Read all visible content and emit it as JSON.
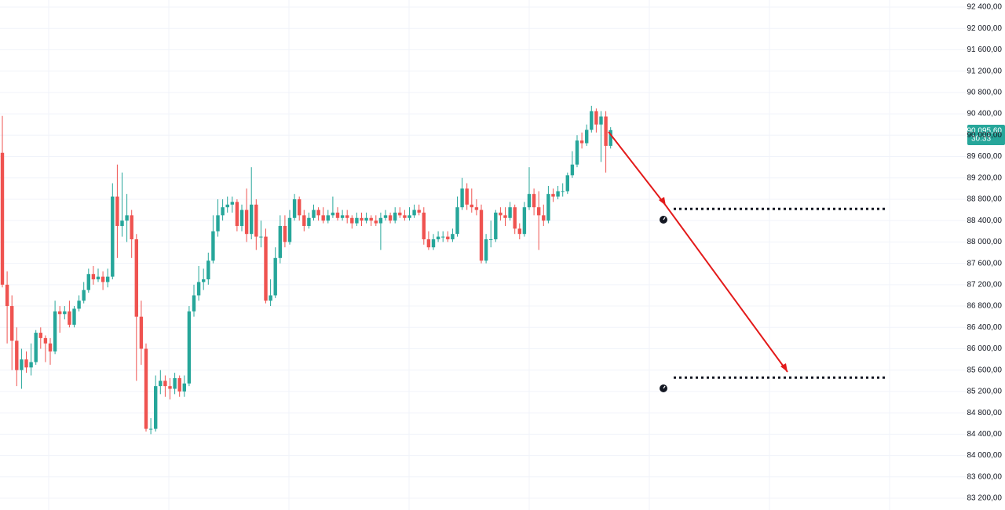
{
  "chart_data": {
    "type": "candlestick",
    "up_color": "#26a69a",
    "down_color": "#ef5350",
    "grid": true,
    "ylim": [
      82980,
      92532
    ],
    "yticks": [
      {
        "value": 92400,
        "label": "92 400,00"
      },
      {
        "value": 92000,
        "label": "92 000,00"
      },
      {
        "value": 91600,
        "label": "91 600,00"
      },
      {
        "value": 91200,
        "label": "91 200,00"
      },
      {
        "value": 90800,
        "label": "90 800,00"
      },
      {
        "value": 90400,
        "label": "90 400,00"
      },
      {
        "value": 90000,
        "label": "90 000,00"
      },
      {
        "value": 89600,
        "label": "89 600,00"
      },
      {
        "value": 89200,
        "label": "89 200,00"
      },
      {
        "value": 88800,
        "label": "88 800,00"
      },
      {
        "value": 88400,
        "label": "88 400,00"
      },
      {
        "value": 88000,
        "label": "88 000,00"
      },
      {
        "value": 87600,
        "label": "87 600,00"
      },
      {
        "value": 87200,
        "label": "87 200,00"
      },
      {
        "value": 86800,
        "label": "86 800,00"
      },
      {
        "value": 86400,
        "label": "86 400,00"
      },
      {
        "value": 86000,
        "label": "86 000,00"
      },
      {
        "value": 85600,
        "label": "85 600,00"
      },
      {
        "value": 85200,
        "label": "85 200,00"
      },
      {
        "value": 84800,
        "label": "84 800,00"
      },
      {
        "value": 84400,
        "label": "84 400,00"
      },
      {
        "value": 84000,
        "label": "84 000,00"
      },
      {
        "value": 83600,
        "label": "83 600,00"
      },
      {
        "value": 83200,
        "label": "83 200,00"
      }
    ],
    "current_price": {
      "value": 90095.6,
      "label": "90 095,60"
    },
    "countdown": "30:33",
    "levels": [
      88620,
      85460
    ],
    "candles": [
      [
        89670,
        90360,
        87150,
        87200
      ],
      [
        87200,
        87450,
        86100,
        86800
      ],
      [
        86800,
        87000,
        85600,
        86150
      ],
      [
        86150,
        86400,
        85300,
        85600
      ],
      [
        85600,
        86000,
        85250,
        85800
      ],
      [
        85800,
        85950,
        85550,
        85650
      ],
      [
        85650,
        86100,
        85500,
        85750
      ],
      [
        85750,
        86350,
        85700,
        86300
      ],
      [
        86300,
        86400,
        86000,
        86200
      ],
      [
        86200,
        86250,
        85750,
        86100
      ],
      [
        86100,
        86200,
        85700,
        85950
      ],
      [
        85950,
        86900,
        85900,
        86700
      ],
      [
        86700,
        86800,
        86300,
        86650
      ],
      [
        86650,
        86800,
        86550,
        86700
      ],
      [
        86700,
        86900,
        86400,
        86450
      ],
      [
        86450,
        86800,
        86400,
        86750
      ],
      [
        86750,
        87000,
        86700,
        86900
      ],
      [
        86900,
        87250,
        86850,
        87100
      ],
      [
        87100,
        87500,
        87050,
        87400
      ],
      [
        87400,
        87550,
        87200,
        87300
      ],
      [
        87300,
        87500,
        87250,
        87350
      ],
      [
        87350,
        87450,
        87100,
        87250
      ],
      [
        87250,
        87500,
        87150,
        87350
      ],
      [
        87350,
        89100,
        87300,
        88850
      ],
      [
        88850,
        89450,
        87700,
        88300
      ],
      [
        88300,
        89300,
        88100,
        88400
      ],
      [
        88400,
        88900,
        88000,
        88500
      ],
      [
        88500,
        88600,
        87700,
        88050
      ],
      [
        88050,
        88150,
        85400,
        86600
      ],
      [
        86600,
        86900,
        85700,
        86000
      ],
      [
        86000,
        86100,
        84450,
        84500
      ],
      [
        84500,
        84700,
        84400,
        84500
      ],
      [
        84500,
        85500,
        84450,
        85300
      ],
      [
        85300,
        85600,
        85150,
        85400
      ],
      [
        85400,
        85500,
        85100,
        85300
      ],
      [
        85300,
        85450,
        85050,
        85250
      ],
      [
        85250,
        85550,
        85150,
        85450
      ],
      [
        85450,
        85500,
        85100,
        85200
      ],
      [
        85200,
        85500,
        85100,
        85350
      ],
      [
        85350,
        86800,
        85300,
        86700
      ],
      [
        86700,
        87200,
        86600,
        87000
      ],
      [
        87000,
        87550,
        86900,
        87250
      ],
      [
        87250,
        87500,
        87100,
        87300
      ],
      [
        87300,
        87800,
        87200,
        87650
      ],
      [
        87650,
        88500,
        87600,
        88200
      ],
      [
        88200,
        88800,
        88100,
        88500
      ],
      [
        88500,
        88800,
        88400,
        88650
      ],
      [
        88650,
        88850,
        88550,
        88700
      ],
      [
        88700,
        88850,
        88550,
        88750
      ],
      [
        88750,
        88800,
        88200,
        88300
      ],
      [
        88300,
        88700,
        88200,
        88600
      ],
      [
        88600,
        89000,
        88000,
        88150
      ],
      [
        88150,
        89400,
        88050,
        88700
      ],
      [
        88700,
        88800,
        87850,
        88100
      ],
      [
        88100,
        88400,
        87900,
        88100
      ],
      [
        88100,
        88250,
        86850,
        86900
      ],
      [
        86900,
        87300,
        86800,
        87000
      ],
      [
        87000,
        87900,
        86950,
        87700
      ],
      [
        87700,
        88500,
        87600,
        88300
      ],
      [
        88300,
        88500,
        87900,
        88000
      ],
      [
        88000,
        88600,
        87950,
        88450
      ],
      [
        88450,
        88900,
        88400,
        88800
      ],
      [
        88800,
        88850,
        88400,
        88500
      ],
      [
        88500,
        88600,
        88200,
        88300
      ],
      [
        88300,
        88550,
        88250,
        88450
      ],
      [
        88450,
        88700,
        88400,
        88600
      ],
      [
        88600,
        88650,
        88400,
        88500
      ],
      [
        88500,
        88650,
        88350,
        88400
      ],
      [
        88400,
        88600,
        88350,
        88500
      ],
      [
        88500,
        88850,
        88450,
        88550
      ],
      [
        88550,
        88650,
        88400,
        88450
      ],
      [
        88450,
        88600,
        88400,
        88500
      ],
      [
        88500,
        88600,
        88350,
        88450
      ],
      [
        88450,
        88500,
        88250,
        88350
      ],
      [
        88350,
        88550,
        88300,
        88450
      ],
      [
        88450,
        88550,
        88300,
        88400
      ],
      [
        88400,
        88550,
        88350,
        88450
      ],
      [
        88450,
        88500,
        88300,
        88400
      ],
      [
        88400,
        88500,
        88300,
        88350
      ],
      [
        88350,
        88550,
        87850,
        88450
      ],
      [
        88450,
        88600,
        88400,
        88500
      ],
      [
        88500,
        88550,
        88350,
        88400
      ],
      [
        88400,
        88650,
        88350,
        88550
      ],
      [
        88550,
        88650,
        88450,
        88500
      ],
      [
        88500,
        88600,
        88400,
        88450
      ],
      [
        88450,
        88650,
        88400,
        88500
      ],
      [
        88500,
        88700,
        88450,
        88600
      ],
      [
        88600,
        88700,
        88500,
        88550
      ],
      [
        88550,
        88650,
        87950,
        88050
      ],
      [
        88050,
        88200,
        87850,
        87900
      ],
      [
        87900,
        88150,
        87850,
        88050
      ],
      [
        88050,
        88200,
        88000,
        88100
      ],
      [
        88100,
        88200,
        88000,
        88100
      ],
      [
        88100,
        88200,
        88000,
        88050
      ],
      [
        88050,
        88250,
        88000,
        88150
      ],
      [
        88150,
        88850,
        88100,
        88650
      ],
      [
        88650,
        89200,
        88600,
        89000
      ],
      [
        89000,
        89100,
        88600,
        88700
      ],
      [
        88700,
        89000,
        88550,
        88650
      ],
      [
        88650,
        88800,
        88500,
        88600
      ],
      [
        88600,
        88700,
        87600,
        87650
      ],
      [
        87650,
        88150,
        87600,
        88050
      ],
      [
        88050,
        88400,
        87900,
        88050
      ],
      [
        88050,
        88600,
        88000,
        88550
      ],
      [
        88550,
        88650,
        88400,
        88500
      ],
      [
        88500,
        88650,
        88300,
        88450
      ],
      [
        88450,
        88750,
        88400,
        88650
      ],
      [
        88650,
        88700,
        88150,
        88250
      ],
      [
        88250,
        88350,
        88050,
        88150
      ],
      [
        88150,
        88750,
        88100,
        88650
      ],
      [
        88650,
        89400,
        88600,
        88900
      ],
      [
        88900,
        89000,
        88500,
        88650
      ],
      [
        88650,
        88950,
        87850,
        88500
      ],
      [
        88500,
        88700,
        88300,
        88400
      ],
      [
        88400,
        89050,
        88350,
        88900
      ],
      [
        88900,
        89000,
        88750,
        88850
      ],
      [
        88850,
        89050,
        88800,
        88950
      ],
      [
        88950,
        89100,
        88850,
        88950
      ],
      [
        88950,
        89300,
        88900,
        89250
      ],
      [
        89250,
        89700,
        89200,
        89450
      ],
      [
        89450,
        90000,
        89400,
        89900
      ],
      [
        89900,
        90050,
        89750,
        89850
      ],
      [
        89850,
        90200,
        89800,
        90100
      ],
      [
        90100,
        90550,
        90050,
        90450
      ],
      [
        90450,
        90500,
        90050,
        90200
      ],
      [
        90200,
        90450,
        89500,
        90350
      ],
      [
        90350,
        90450,
        89300,
        89800
      ],
      [
        89800,
        90150,
        89750,
        90095.6
      ]
    ]
  }
}
